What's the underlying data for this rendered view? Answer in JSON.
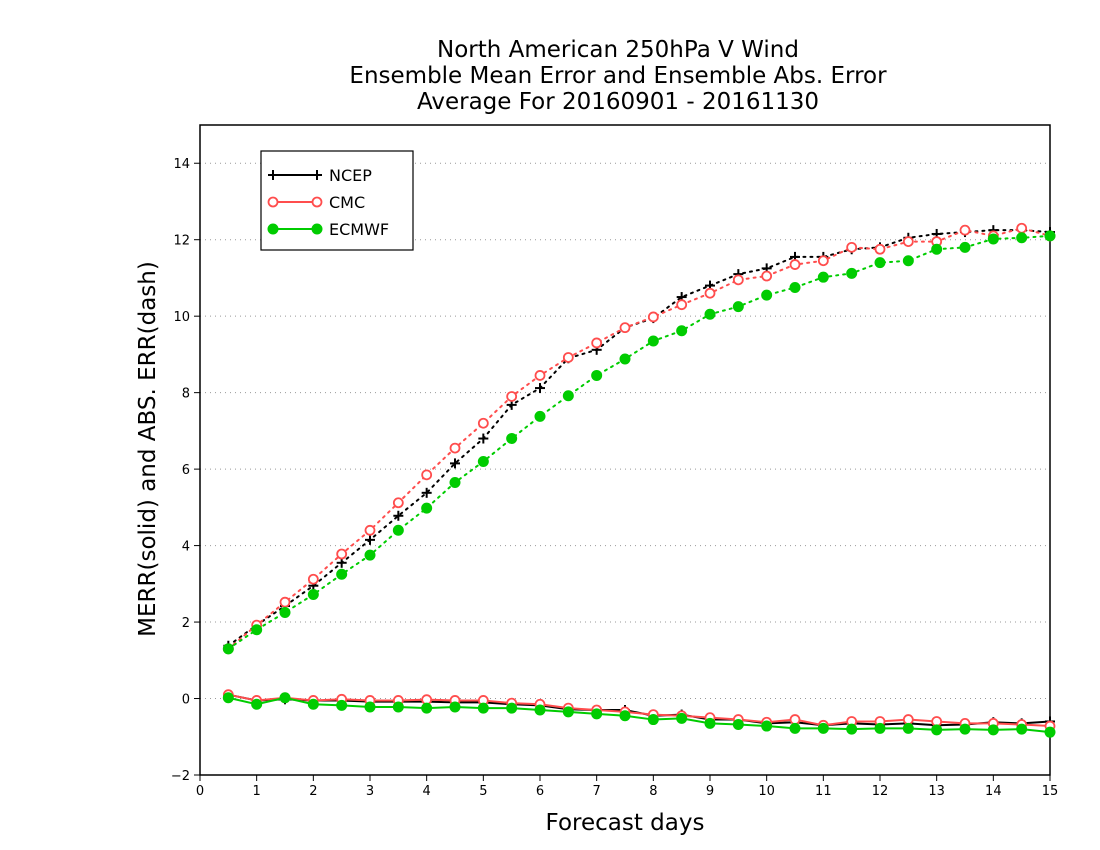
{
  "title": [
    "North American 250hPa V Wind",
    "Ensemble Mean Error and Ensemble Abs. Error",
    "Average For 20160901 - 20161130"
  ],
  "chart_data": {
    "type": "line",
    "title": "North American 250hPa V Wind / Ensemble Mean Error and Ensemble Abs. Error / Average For 20160901 - 20161130",
    "xlabel": "Forecast days",
    "ylabel": "MERR(solid) and ABS. ERR(dash)",
    "xlim": [
      0,
      15
    ],
    "ylim": [
      -2,
      15
    ],
    "xticks": [
      0,
      1,
      2,
      3,
      4,
      5,
      6,
      7,
      8,
      9,
      10,
      11,
      12,
      13,
      14,
      15
    ],
    "yticks": [
      -2,
      0,
      2,
      4,
      6,
      8,
      10,
      12,
      14
    ],
    "grid": "horizontal dotted",
    "legend_position": "top-left",
    "x": [
      0.5,
      1,
      1.5,
      2,
      2.5,
      3,
      3.5,
      4,
      4.5,
      5,
      5.5,
      6,
      6.5,
      7,
      7.5,
      8,
      8.5,
      9,
      9.5,
      10,
      10.5,
      11,
      11.5,
      12,
      12.5,
      13,
      13.5,
      14,
      14.5,
      15
    ],
    "series": [
      {
        "name": "NCEP",
        "color": "#000000",
        "marker": "plus",
        "abs_error": [
          1.38,
          1.92,
          2.42,
          2.95,
          3.55,
          4.15,
          4.78,
          5.38,
          6.15,
          6.8,
          7.68,
          8.12,
          8.9,
          9.12,
          9.7,
          9.95,
          10.5,
          10.8,
          11.1,
          11.25,
          11.55,
          11.55,
          11.75,
          11.8,
          12.05,
          12.15,
          12.2,
          12.25,
          12.25,
          12.2
        ],
        "mean_error": [
          0.1,
          -0.05,
          -0.02,
          -0.05,
          -0.05,
          -0.08,
          -0.08,
          -0.08,
          -0.1,
          -0.1,
          -0.15,
          -0.18,
          -0.28,
          -0.3,
          -0.3,
          -0.45,
          -0.42,
          -0.55,
          -0.55,
          -0.65,
          -0.62,
          -0.7,
          -0.65,
          -0.68,
          -0.65,
          -0.7,
          -0.68,
          -0.62,
          -0.65,
          -0.6
        ]
      },
      {
        "name": "CMC",
        "color": "#ff4d4d",
        "marker": "circle",
        "abs_error": [
          1.3,
          1.92,
          2.52,
          3.12,
          3.78,
          4.4,
          5.12,
          5.85,
          6.55,
          7.2,
          7.9,
          8.45,
          8.92,
          9.3,
          9.7,
          9.98,
          10.3,
          10.6,
          10.95,
          11.05,
          11.35,
          11.45,
          11.8,
          11.75,
          11.95,
          11.95,
          12.25,
          12.1,
          12.3,
          12.1
        ],
        "mean_error": [
          0.1,
          -0.05,
          0.02,
          -0.05,
          -0.02,
          -0.05,
          -0.05,
          -0.03,
          -0.05,
          -0.05,
          -0.12,
          -0.15,
          -0.25,
          -0.3,
          -0.35,
          -0.42,
          -0.45,
          -0.5,
          -0.55,
          -0.62,
          -0.55,
          -0.7,
          -0.6,
          -0.6,
          -0.55,
          -0.6,
          -0.65,
          -0.65,
          -0.68,
          -0.72
        ]
      },
      {
        "name": "ECMWF",
        "color": "#00cc00",
        "marker": "filled-circle",
        "abs_error": [
          1.3,
          1.8,
          2.25,
          2.72,
          3.25,
          3.75,
          4.4,
          4.98,
          5.65,
          6.2,
          6.8,
          7.38,
          7.92,
          8.45,
          8.88,
          9.35,
          9.62,
          10.05,
          10.25,
          10.55,
          10.75,
          11.02,
          11.12,
          11.4,
          11.45,
          11.75,
          11.8,
          12.02,
          12.05,
          12.1
        ],
        "mean_error": [
          0.02,
          -0.15,
          0.02,
          -0.15,
          -0.18,
          -0.22,
          -0.22,
          -0.25,
          -0.22,
          -0.25,
          -0.25,
          -0.3,
          -0.35,
          -0.4,
          -0.45,
          -0.55,
          -0.52,
          -0.65,
          -0.68,
          -0.72,
          -0.78,
          -0.78,
          -0.8,
          -0.78,
          -0.78,
          -0.82,
          -0.8,
          -0.82,
          -0.8,
          -0.88
        ]
      }
    ]
  }
}
